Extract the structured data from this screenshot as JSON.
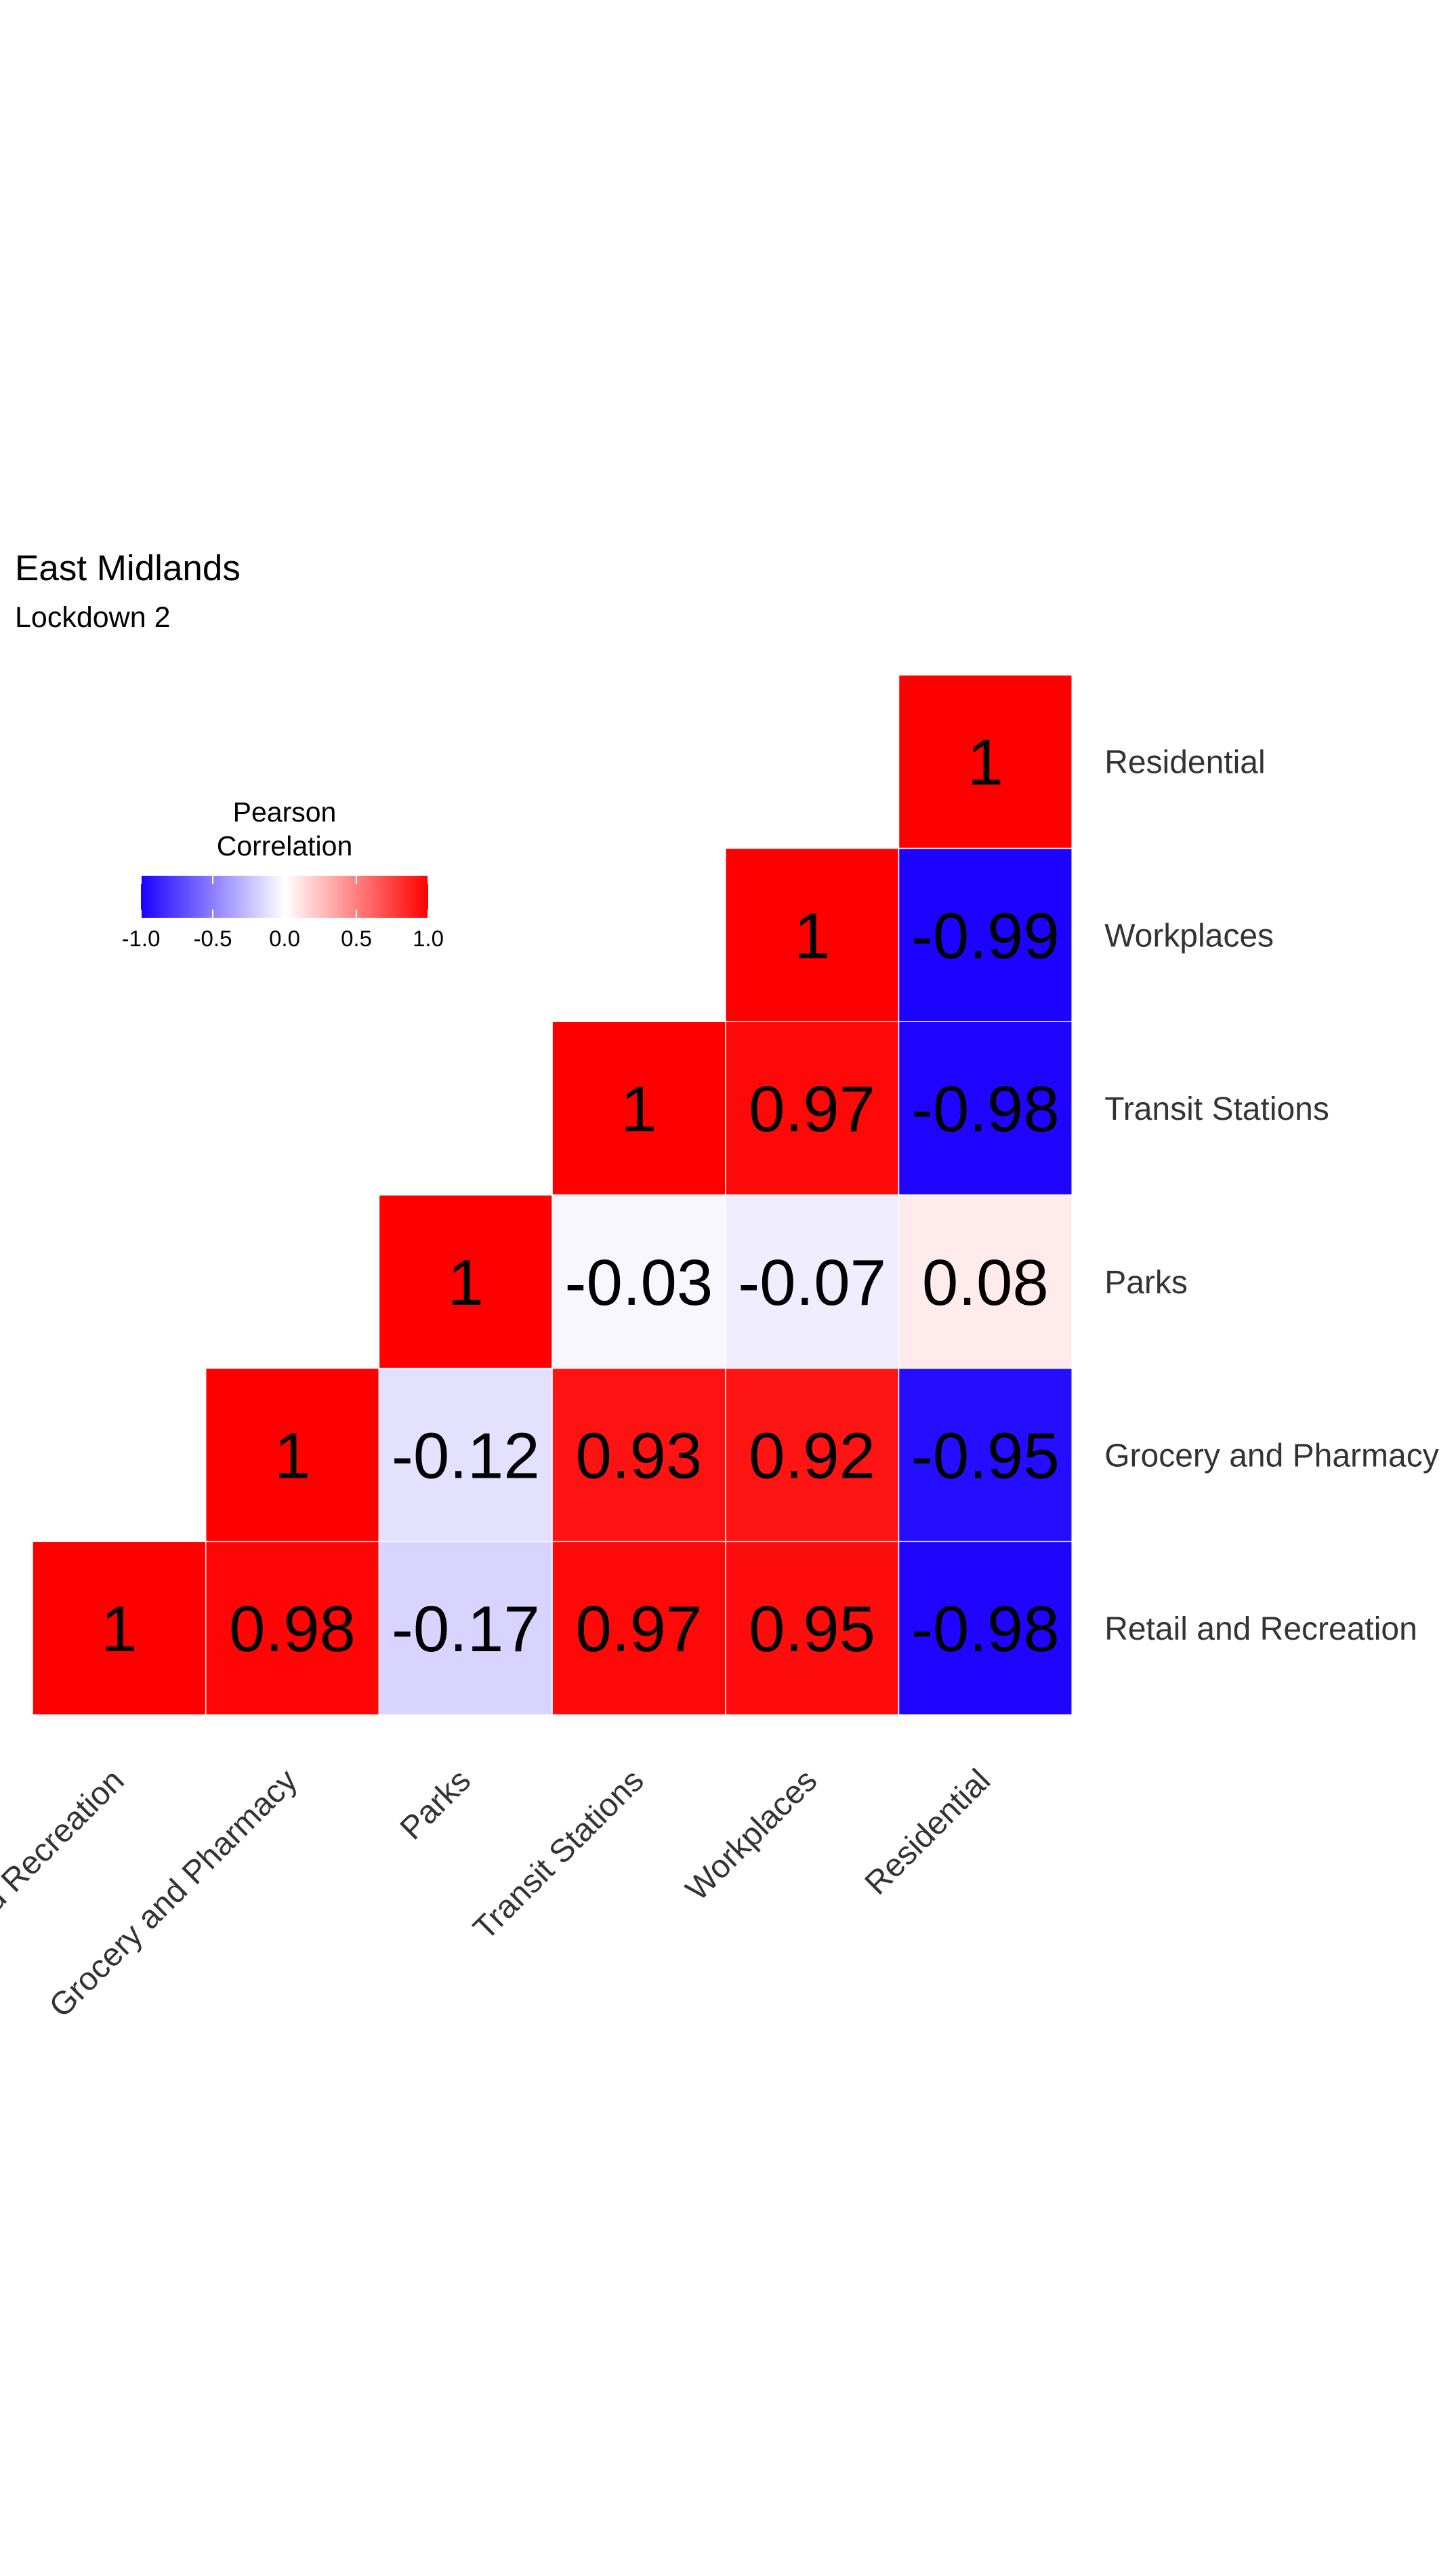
{
  "chart_data": {
    "type": "heatmap",
    "title": "East Midlands",
    "subtitle": "Lockdown 2",
    "variables": [
      "Retail and Recreation",
      "Grocery and Pharmacy",
      "Parks",
      "Transit Stations",
      "Workplaces",
      "Residential"
    ],
    "row_labels": [
      "Residential",
      "Workplaces",
      "Transit Stations",
      "Parks",
      "Grocery and Pharmacy",
      "Retail and Recreation"
    ],
    "column_labels": [
      "Retail and Recreation",
      "Grocery and Pharmacy",
      "Parks",
      "Transit Stations",
      "Workplaces",
      "Residential"
    ],
    "layout": "upper-triangle",
    "cells": [
      {
        "x": "Retail and Recreation",
        "y": "Retail and Recreation",
        "value": 1,
        "label": "1"
      },
      {
        "x": "Grocery and Pharmacy",
        "y": "Retail and Recreation",
        "value": 0.98,
        "label": "0.98"
      },
      {
        "x": "Parks",
        "y": "Retail and Recreation",
        "value": -0.17,
        "label": "-0.17"
      },
      {
        "x": "Transit Stations",
        "y": "Retail and Recreation",
        "value": 0.97,
        "label": "0.97"
      },
      {
        "x": "Workplaces",
        "y": "Retail and Recreation",
        "value": 0.95,
        "label": "0.95"
      },
      {
        "x": "Residential",
        "y": "Retail and Recreation",
        "value": -0.98,
        "label": "-0.98"
      },
      {
        "x": "Grocery and Pharmacy",
        "y": "Grocery and Pharmacy",
        "value": 1,
        "label": "1"
      },
      {
        "x": "Parks",
        "y": "Grocery and Pharmacy",
        "value": -0.12,
        "label": "-0.12"
      },
      {
        "x": "Transit Stations",
        "y": "Grocery and Pharmacy",
        "value": 0.93,
        "label": "0.93"
      },
      {
        "x": "Workplaces",
        "y": "Grocery and Pharmacy",
        "value": 0.92,
        "label": "0.92"
      },
      {
        "x": "Residential",
        "y": "Grocery and Pharmacy",
        "value": -0.95,
        "label": "-0.95"
      },
      {
        "x": "Parks",
        "y": "Parks",
        "value": 1,
        "label": "1"
      },
      {
        "x": "Transit Stations",
        "y": "Parks",
        "value": -0.03,
        "label": "-0.03"
      },
      {
        "x": "Workplaces",
        "y": "Parks",
        "value": -0.07,
        "label": "-0.07"
      },
      {
        "x": "Residential",
        "y": "Parks",
        "value": 0.08,
        "label": "0.08"
      },
      {
        "x": "Transit Stations",
        "y": "Transit Stations",
        "value": 1,
        "label": "1"
      },
      {
        "x": "Workplaces",
        "y": "Transit Stations",
        "value": 0.97,
        "label": "0.97"
      },
      {
        "x": "Residential",
        "y": "Transit Stations",
        "value": -0.98,
        "label": "-0.98"
      },
      {
        "x": "Workplaces",
        "y": "Workplaces",
        "value": 1,
        "label": "1"
      },
      {
        "x": "Residential",
        "y": "Workplaces",
        "value": -0.99,
        "label": "-0.99"
      },
      {
        "x": "Residential",
        "y": "Residential",
        "value": 1,
        "label": "1"
      }
    ],
    "color_scale": {
      "low": "#1a00ff",
      "mid": "#ffffff",
      "high": "#ff0000",
      "domain": [
        -1,
        0,
        1
      ]
    },
    "legend": {
      "title_line1": "Pearson",
      "title_line2": "Correlation",
      "placement": "top-left",
      "ticks": [
        -1,
        -0.5,
        0,
        0.5,
        1
      ],
      "tick_labels": [
        "-1.0",
        "-0.5",
        "0.0",
        "0.5",
        "1.0"
      ]
    }
  }
}
